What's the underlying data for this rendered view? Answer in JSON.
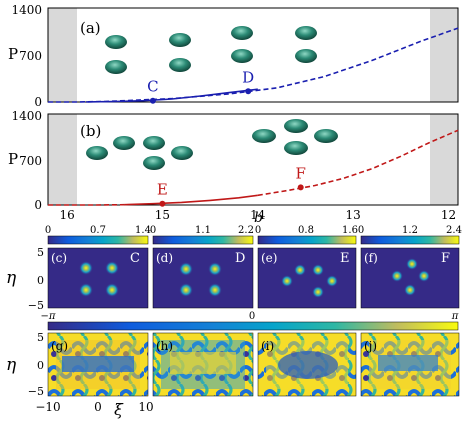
{
  "figure": {
    "panel_labels": [
      "(a)",
      "(b)",
      "(c)",
      "(d)",
      "(e)",
      "(f)",
      "(g)",
      "(h)",
      "(i)",
      "(j)"
    ],
    "point_labels": [
      "C",
      "D",
      "E",
      "F"
    ],
    "phase_bar": {
      "min": "−π",
      "mid": "0",
      "max": "π"
    },
    "eta_label": "η",
    "xi_label": "ξ",
    "b_label": "b"
  },
  "chart_data": [
    {
      "type": "line",
      "panel": "(a)",
      "ylabel": "P",
      "ylim": [
        0,
        1400
      ],
      "yticks": [
        "0",
        "700",
        "1400"
      ],
      "xlim": [
        16.2,
        11.9
      ],
      "shaded_regions": [
        [
          16.2,
          15.8
        ],
        [
          12.3,
          11.9
        ]
      ],
      "series": [
        {
          "style": "solid",
          "color": "#1a1fb0",
          "x": [
            15.8,
            15.5,
            15.2,
            14.9,
            14.6,
            14.3,
            14.0
          ],
          "y": [
            2,
            8,
            20,
            45,
            90,
            140,
            190
          ]
        },
        {
          "style": "dashed",
          "color": "#1a1fb0",
          "x": [
            16.2,
            15.9,
            15.6,
            14.9,
            14.3,
            13.8,
            13.3,
            12.8,
            12.3,
            11.9
          ],
          "y": [
            0,
            0,
            8,
            50,
            120,
            210,
            380,
            620,
            900,
            1100
          ]
        }
      ],
      "points": [
        {
          "label": "C",
          "x": 15.1,
          "y": 20
        },
        {
          "label": "D",
          "x": 14.1,
          "y": 160
        }
      ]
    },
    {
      "type": "line",
      "panel": "(b)",
      "ylabel": "P",
      "ylim": [
        0,
        1400
      ],
      "yticks": [
        "0",
        "700",
        "1400"
      ],
      "xlim": [
        16.2,
        11.9
      ],
      "xticks": [
        "16",
        "15",
        "14",
        "13",
        "12"
      ],
      "xlabel": "b",
      "shaded_regions": [
        [
          16.2,
          15.8
        ],
        [
          12.3,
          11.9
        ]
      ],
      "series": [
        {
          "style": "dashed",
          "color": "#c01818",
          "x": [
            16.2,
            15.7,
            15.4
          ],
          "y": [
            0,
            0,
            5
          ]
        },
        {
          "style": "solid",
          "color": "#c01818",
          "x": [
            15.4,
            15.1,
            14.8,
            14.5,
            14.2,
            14.0
          ],
          "y": [
            5,
            20,
            40,
            70,
            110,
            150
          ]
        },
        {
          "style": "dashed",
          "color": "#c01818",
          "x": [
            14.0,
            13.7,
            13.4,
            13.1,
            12.8,
            12.5,
            12.2,
            11.9
          ],
          "y": [
            150,
            220,
            300,
            410,
            560,
            750,
            960,
            1150
          ]
        }
      ],
      "points": [
        {
          "label": "E",
          "x": 15.0,
          "y": 20
        },
        {
          "label": "F",
          "x": 13.55,
          "y": 270
        }
      ]
    },
    {
      "type": "heatmap",
      "panel": "(c)",
      "colorbar_ticks": [
        "0",
        "0.7",
        "1.4"
      ],
      "yticks": [
        "5",
        "0",
        "−5"
      ],
      "point_label": "C"
    },
    {
      "type": "heatmap",
      "panel": "(d)",
      "colorbar_ticks": [
        "0",
        "1.1",
        "2.2"
      ],
      "point_label": "D"
    },
    {
      "type": "heatmap",
      "panel": "(e)",
      "colorbar_ticks": [
        "0",
        "0.8",
        "1.6"
      ],
      "point_label": "E"
    },
    {
      "type": "heatmap",
      "panel": "(f)",
      "colorbar_ticks": [
        "0",
        "1.2",
        "2.4"
      ],
      "point_label": "F"
    },
    {
      "type": "heatmap",
      "panels": [
        "(g)",
        "(h)",
        "(i)",
        "(j)"
      ],
      "yticks": [
        "5",
        "0",
        "−5"
      ],
      "xticks": [
        "−10",
        "0",
        "10"
      ]
    }
  ]
}
